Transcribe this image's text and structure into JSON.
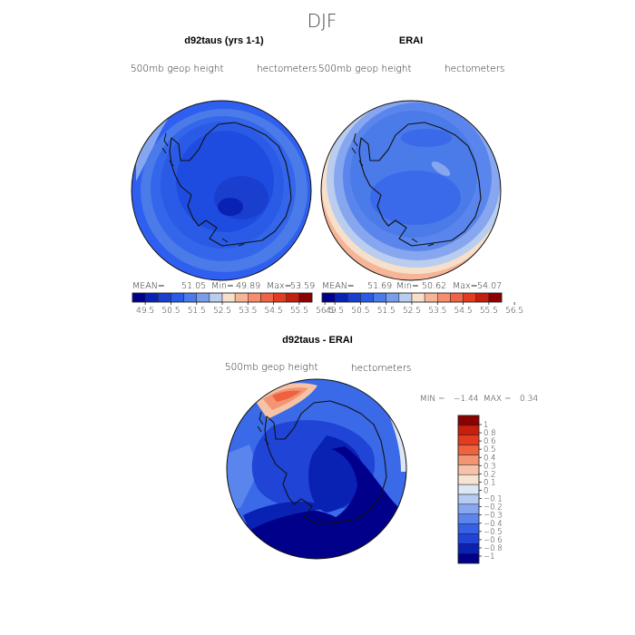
{
  "page_title": "DJF",
  "panels": [
    {
      "title": "d92taus (yrs 1-1)",
      "left_label": "500mb geop height",
      "right_label": "hectometers",
      "stats": {
        "mean_label": "MEAN=",
        "mean": "51.05",
        "min_label": "Min=",
        "min": "49.89",
        "max_label": "Max=",
        "max": "53.59"
      }
    },
    {
      "title": "ERAI",
      "left_label": "500mb geop height",
      "right_label": "hectometers",
      "stats": {
        "mean_label": "MEAN=",
        "mean": "51.69",
        "min_label": "Min=",
        "min": "50.62",
        "max_label": "Max=",
        "max": "54.07"
      }
    },
    {
      "title": "d92taus - ERAI",
      "left_label": "500mb geop height",
      "right_label": "hectometers",
      "stats": {
        "min_label": "MIN =",
        "min": "−1.44",
        "max_label": "MAX =",
        "max": "0.34"
      }
    }
  ],
  "colorbar_top": {
    "colors": [
      "#00008b",
      "#0a22b4",
      "#1a3fcf",
      "#2a5be6",
      "#4a7be9",
      "#7a9de9",
      "#b9cdee",
      "#f6dfcb",
      "#f7b597",
      "#f58d6e",
      "#ef6346",
      "#e33c22",
      "#c41e0e",
      "#8b0000"
    ],
    "labels": [
      "49.5",
      "50.5",
      "51.5",
      "52.5",
      "53.5",
      "54.5",
      "55.5",
      "56.5"
    ]
  },
  "colorbar_diff": {
    "colors": [
      "#00008b",
      "#0a22b4",
      "#1f44d6",
      "#3660e6",
      "#5a85ec",
      "#86a6ef",
      "#b5cbf2",
      "#dde6f4",
      "#f7e3d1",
      "#f6c3a8",
      "#f39572",
      "#ee6240",
      "#e43b20",
      "#c71e0e",
      "#8b0000"
    ],
    "labels": [
      "1",
      "0.8",
      "0.6",
      "0.5",
      "0.4",
      "0.3",
      "0.2",
      "0.1",
      "0",
      "−0.1",
      "−0.2",
      "−0.3",
      "−0.4",
      "−0.5",
      "−0.6",
      "−0.8",
      "−1"
    ]
  },
  "chart_data": [
    {
      "type": "heatmap",
      "title": "d92taus (yrs 1-1)",
      "field": "500mb geop height",
      "units": "hectometers",
      "levels": [
        49.5,
        50.5,
        51.5,
        52.5,
        53.5,
        54.5,
        55.5,
        56.5
      ],
      "mean": 51.05,
      "min": 49.89,
      "max": 53.59
    },
    {
      "type": "heatmap",
      "title": "ERAI",
      "field": "500mb geop height",
      "units": "hectometers",
      "levels": [
        49.5,
        50.5,
        51.5,
        52.5,
        53.5,
        54.5,
        55.5,
        56.5
      ],
      "mean": 51.69,
      "min": 50.62,
      "max": 54.07
    },
    {
      "type": "heatmap",
      "title": "d92taus - ERAI",
      "field": "500mb geop height",
      "units": "hectometers",
      "levels": [
        -1,
        -0.8,
        -0.6,
        -0.5,
        -0.4,
        -0.3,
        -0.2,
        -0.1,
        0,
        0.1,
        0.2,
        0.3,
        0.4,
        0.5,
        0.6,
        0.8,
        1
      ],
      "min": -1.44,
      "max": 0.34
    }
  ]
}
